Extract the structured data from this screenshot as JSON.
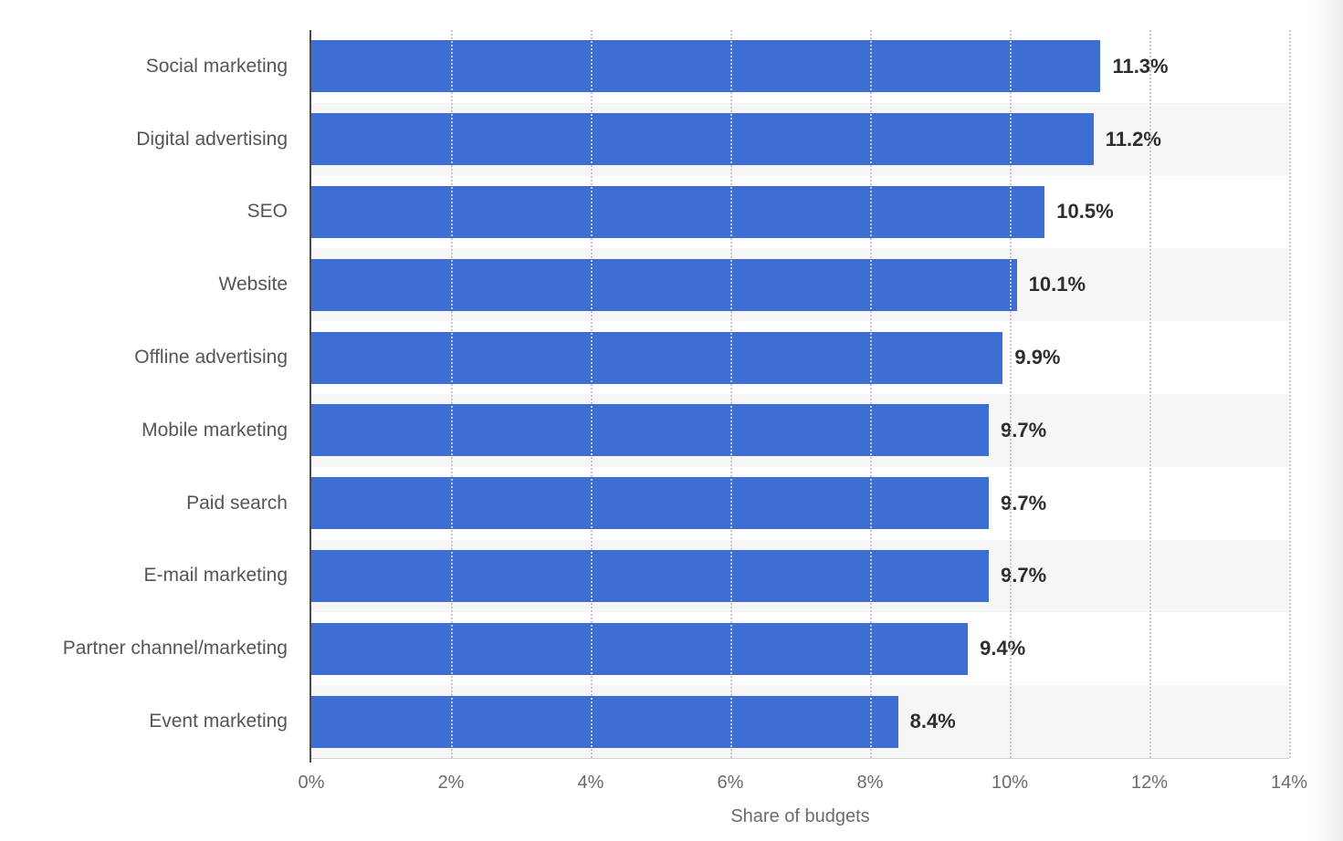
{
  "chart_data": {
    "type": "bar",
    "orientation": "horizontal",
    "title": "",
    "categories": [
      "Social marketing",
      "Digital advertising",
      "SEO",
      "Website",
      "Offline advertising",
      "Mobile marketing",
      "Paid search",
      "E-mail marketing",
      "Partner channel/marketing",
      "Event marketing"
    ],
    "values": [
      11.3,
      11.2,
      10.5,
      10.1,
      9.9,
      9.7,
      9.7,
      9.7,
      9.4,
      8.4
    ],
    "value_labels": [
      "11.3%",
      "11.2%",
      "10.5%",
      "10.1%",
      "9.9%",
      "9.7%",
      "9.7%",
      "9.7%",
      "9.4%",
      "8.4%"
    ],
    "xlabel": "Share of budgets",
    "ylabel": "",
    "xlim": [
      0,
      14
    ],
    "x_ticks": [
      {
        "value": 0,
        "label": "0%"
      },
      {
        "value": 2,
        "label": "2%"
      },
      {
        "value": 4,
        "label": "4%"
      },
      {
        "value": 6,
        "label": "6%"
      },
      {
        "value": 8,
        "label": "8%"
      },
      {
        "value": 10,
        "label": "10%"
      },
      {
        "value": 12,
        "label": "12%"
      },
      {
        "value": 14,
        "label": "14%"
      }
    ],
    "grid": "vertical-dotted",
    "legend": "none",
    "row_striping": "alternate, plot area only",
    "colors": {
      "bar": "#3D6FD2",
      "stripe": "#F6F6F6",
      "gridline": "#C9C9C9",
      "axis_line": "#4A4A4A",
      "category_label": "#555555",
      "value_label": "#2E2E2E",
      "tick_label": "#6B6B6B"
    }
  }
}
